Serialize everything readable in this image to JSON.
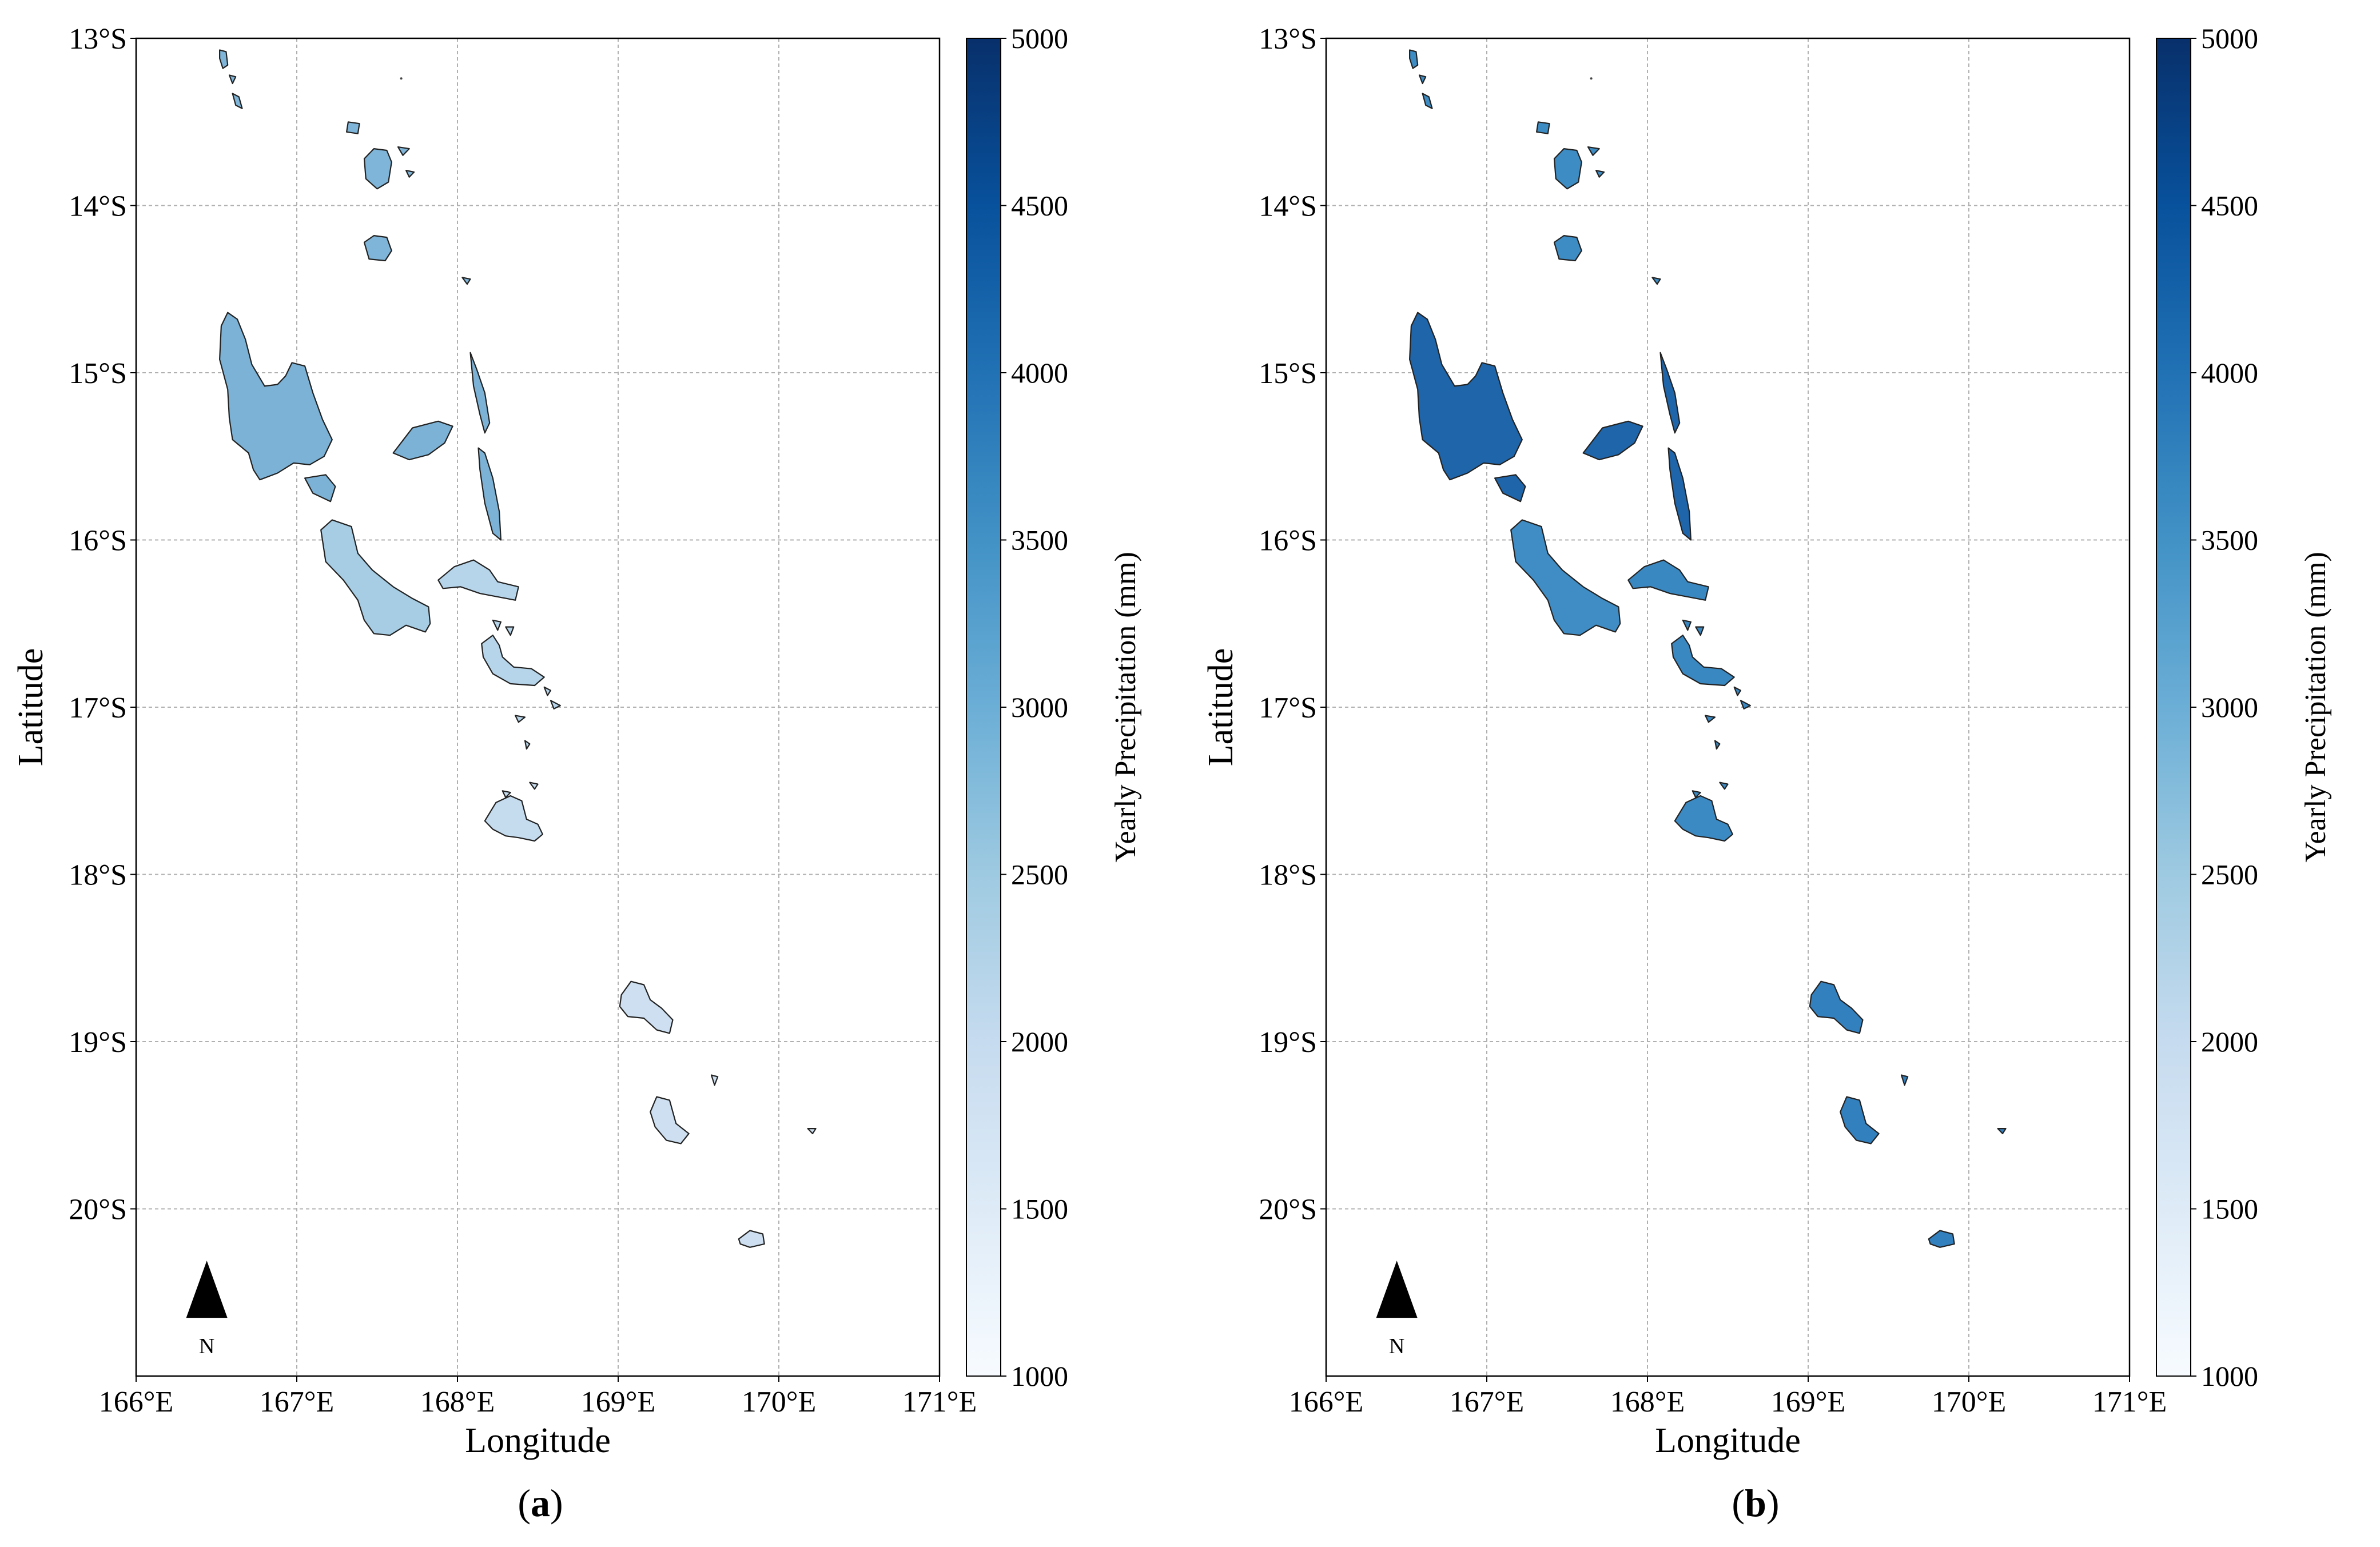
{
  "panels": [
    {
      "id": "a",
      "caption_letter": "a",
      "xlabel": "Longitude",
      "ylabel": "Latitude",
      "x_ticks": [
        "166°E",
        "167°E",
        "168°E",
        "169°E",
        "170°E",
        "171°E"
      ],
      "y_ticks": [
        "13°S",
        "14°S",
        "15°S",
        "16°S",
        "17°S",
        "18°S",
        "19°S",
        "20°S"
      ],
      "colorbar_label": "Yearly Precipitation (mm)",
      "colorbar_ticks": [
        "5000",
        "4500",
        "4000",
        "3500",
        "3000",
        "2500",
        "2000",
        "1500",
        "1000"
      ],
      "north_label": "N",
      "island_colors": {
        "north": "#7fb5d8",
        "santo": "#7cb2d6",
        "malekula": "#a6cde4",
        "central": "#b7d5ea",
        "efate": "#c5dbee",
        "south": "#cddff0"
      }
    },
    {
      "id": "b",
      "caption_letter": "b",
      "xlabel": "Longitude",
      "ylabel": "Latitude",
      "x_ticks": [
        "166°E",
        "167°E",
        "168°E",
        "169°E",
        "170°E",
        "171°E"
      ],
      "y_ticks": [
        "13°S",
        "14°S",
        "15°S",
        "16°S",
        "17°S",
        "18°S",
        "19°S",
        "20°S"
      ],
      "colorbar_label": "Yearly Precipitation (mm)",
      "colorbar_ticks": [
        "5000",
        "4500",
        "4000",
        "3500",
        "3000",
        "2500",
        "2000",
        "1500",
        "1000"
      ],
      "north_label": "N",
      "island_colors": {
        "north": "#3d8cc4",
        "santo": "#1f65aa",
        "malekula": "#3f8dc4",
        "central": "#3a88c2",
        "efate": "#3c8ac3",
        "south": "#3380bf"
      }
    }
  ],
  "chart_data": {
    "type": "map",
    "title": "",
    "xlabel": "Longitude",
    "ylabel": "Latitude",
    "xlim": [
      166,
      171
    ],
    "ylim": [
      -21,
      -13
    ],
    "colorbar": {
      "label": "Yearly Precipitation (mm)",
      "range": [
        1000,
        5000
      ]
    },
    "panels": [
      "a",
      "b"
    ]
  }
}
